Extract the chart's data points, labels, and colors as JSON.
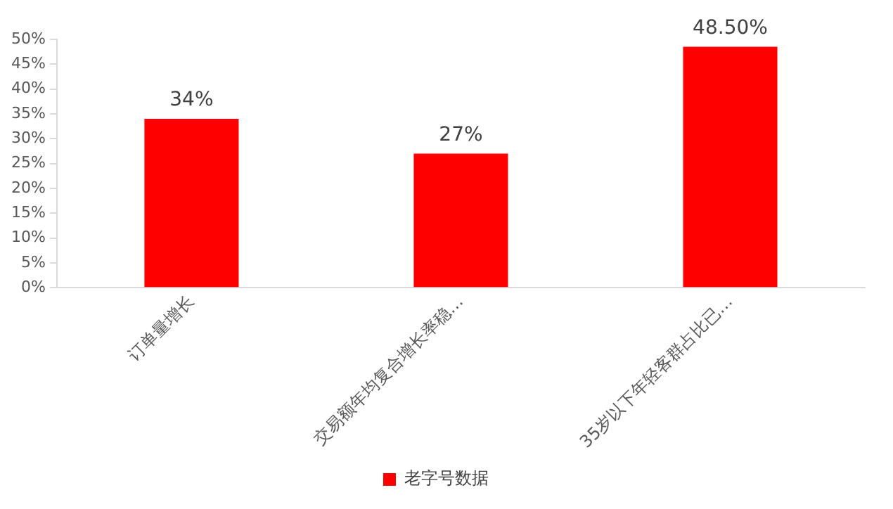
{
  "chart_data": {
    "type": "bar",
    "categories": [
      "订单量增长",
      "交易额年均复合增长率稳…",
      "35岁以下年轻客群占比已…"
    ],
    "series": [
      {
        "name": "老字号数据",
        "color": "#ff0000",
        "values": [
          34,
          27,
          48.5
        ],
        "value_labels": [
          "34%",
          "27%",
          "48.50%"
        ]
      }
    ],
    "ylim": [
      0,
      50
    ],
    "yticks": [
      {
        "value": 0,
        "label": "0%"
      },
      {
        "value": 5,
        "label": "5%"
      },
      {
        "value": 10,
        "label": "10%"
      },
      {
        "value": 15,
        "label": "15%"
      },
      {
        "value": 20,
        "label": "20%"
      },
      {
        "value": 25,
        "label": "25%"
      },
      {
        "value": 30,
        "label": "30%"
      },
      {
        "value": 35,
        "label": "35%"
      },
      {
        "value": 40,
        "label": "40%"
      },
      {
        "value": 45,
        "label": "45%"
      },
      {
        "value": 50,
        "label": "50%"
      }
    ],
    "grid": false,
    "legend": "bottom"
  }
}
